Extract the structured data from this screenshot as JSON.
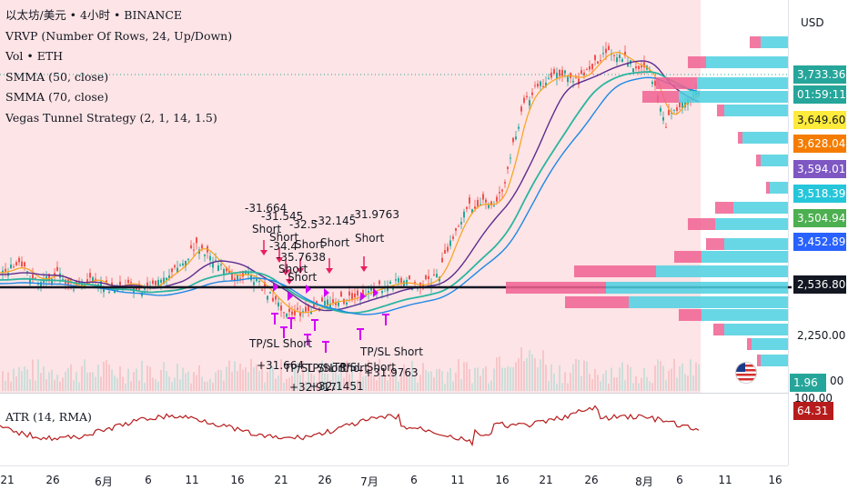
{
  "legend": {
    "symbol": "以太坊/美元 • 4小时 • BINANCE",
    "vrvp": "VRVP (Number Of Rows, 24, Up/Down)",
    "vol": "Vol • ETH",
    "smma50": "SMMA (50, close)",
    "smma70": "SMMA (70, close)",
    "strategy": "Vegas Tunnel Strategy (2, 1, 14, 1.5)"
  },
  "atr_indicator": {
    "label": "ATR (14, RMA)",
    "value": "64.31"
  },
  "currency": "USD",
  "price_axis": {
    "tags": [
      {
        "value": "3,733.36",
        "color": "#26a69a"
      },
      {
        "value": "01:59:11",
        "color": "#26a69a"
      },
      {
        "value": "3,649.60",
        "color": "#ffeb3b"
      },
      {
        "value": "3,628.04",
        "color": "#f57c00"
      },
      {
        "value": "3,594.01",
        "color": "#7e57c2"
      },
      {
        "value": "3,518.39",
        "color": "#26c6da"
      },
      {
        "value": "3,504.94",
        "color": "#4caf50"
      },
      {
        "value": "3,452.89",
        "color": "#2962ff"
      },
      {
        "value": "2,536.80",
        "color": "#131722"
      },
      {
        "value": "1.96 K",
        "color": "#26a69a"
      }
    ],
    "plain_labels": [
      "2,250.00",
      "00",
      "100.00"
    ]
  },
  "time_axis": [
    "21",
    "26",
    "6月",
    "6",
    "11",
    "16",
    "21",
    "26",
    "7月",
    "6",
    "11",
    "16",
    "21",
    "26",
    "8月",
    "6",
    "11",
    "16"
  ],
  "signals": {
    "short_values": [
      "-31.664",
      "-31.545",
      "-32.5",
      "-32.145",
      "-31.9763",
      "-34.4",
      "-35.7638"
    ],
    "short_label": "Short",
    "tpsl_label": "TP/SL Short",
    "tpsl_values": [
      "+31.664",
      "+31.9763",
      "+32.917",
      "+32.1451"
    ]
  },
  "colors": {
    "background_shade": "#fde4e6",
    "candle_up": "#26a69a",
    "candle_down": "#ef5350",
    "smma50": "#5b2d90",
    "smma70": "#1e88e5",
    "ema_fast": "#f7a21b",
    "tunnel": "#2bb5a0",
    "atr": "#b71c1c",
    "volume_profile_up": "#4dd0e1",
    "volume_profile_down": "#f06292",
    "signal_marker": "#d500f9",
    "arrow": "#e91e63"
  }
}
